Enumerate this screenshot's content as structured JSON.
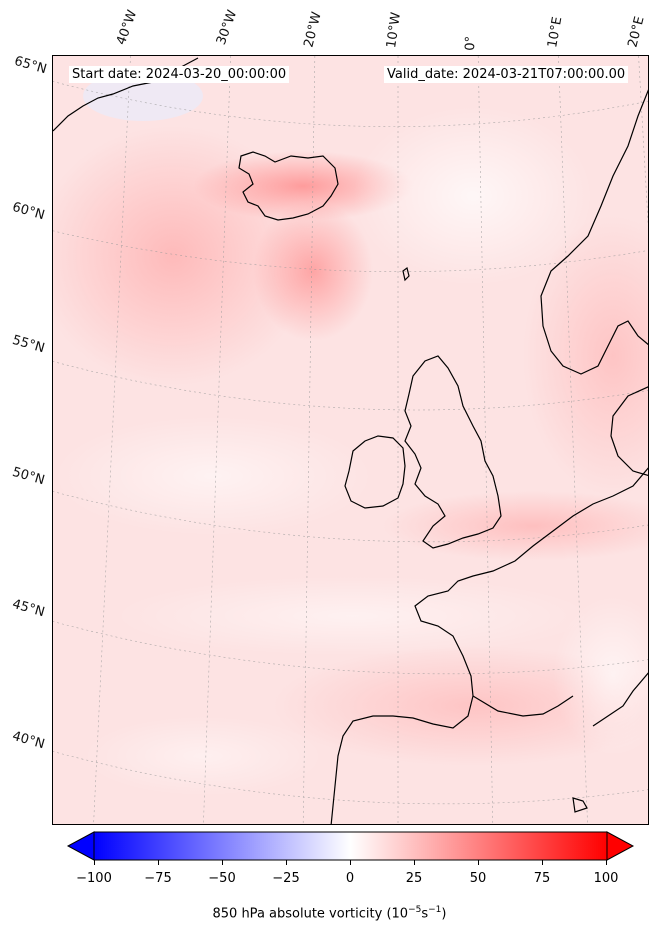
{
  "map": {
    "start_date": "Start date: 2024-03-20_00:00:00",
    "valid_date": "Valid_date: 2024-03-21T07:00:00.00",
    "lon_labels": [
      "40°W",
      "30°W",
      "20°W",
      "10°W",
      "0°",
      "10°E",
      "20°E"
    ],
    "lat_labels": [
      "65°N",
      "60°N",
      "55°N",
      "50°N",
      "45°N",
      "40°N"
    ]
  },
  "colorbar": {
    "label": "850 hPa absolute vorticity (10",
    "label_exp1": "−5",
    "label_mid": "s",
    "label_exp2": "−1",
    "label_end": ")",
    "ticks": [
      "−100",
      "−75",
      "−50",
      "−25",
      "0",
      "25",
      "50",
      "75",
      "100"
    ],
    "min": -100,
    "max": 100,
    "colors": {
      "low": "#0000ff",
      "mid": "#ffffff",
      "high": "#ff0000"
    }
  }
}
